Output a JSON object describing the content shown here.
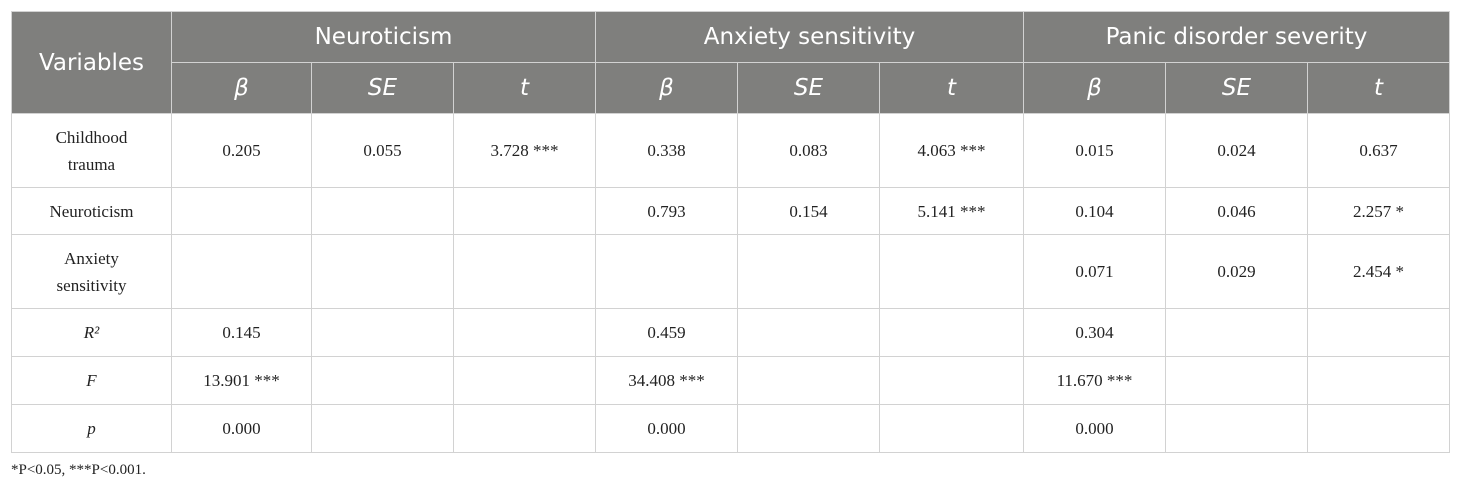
{
  "table": {
    "variables_header": "Variables",
    "groups": [
      "Neuroticism",
      "Anxiety sensitivity",
      "Panic disorder severity"
    ],
    "subheaders": [
      "β",
      "SE",
      "t",
      "β",
      "SE",
      "t",
      "β",
      "SE",
      "t"
    ],
    "rows": [
      {
        "label_lines": [
          "Childhood",
          "trauma"
        ],
        "italic": false,
        "cells": [
          "0.205",
          "0.055",
          "3.728 ***",
          "0.338",
          "0.083",
          "4.063 ***",
          "0.015",
          "0.024",
          "0.637"
        ]
      },
      {
        "label_lines": [
          "Neuroticism"
        ],
        "italic": false,
        "cells": [
          "",
          "",
          "",
          "0.793",
          "0.154",
          "5.141 ***",
          "0.104",
          "0.046",
          "2.257 *"
        ]
      },
      {
        "label_lines": [
          "Anxiety",
          "sensitivity"
        ],
        "italic": false,
        "cells": [
          "",
          "",
          "",
          "",
          "",
          "",
          "0.071",
          "0.029",
          "2.454 *"
        ]
      },
      {
        "label_lines": [
          "R²"
        ],
        "italic": true,
        "cells": [
          "0.145",
          "",
          "",
          "0.459",
          "",
          "",
          "0.304",
          "",
          ""
        ]
      },
      {
        "label_lines": [
          "F"
        ],
        "italic": true,
        "cells": [
          "13.901 ***",
          "",
          "",
          "34.408 ***",
          "",
          "",
          "11.670 ***",
          "",
          ""
        ]
      },
      {
        "label_lines": [
          "p"
        ],
        "italic": true,
        "cells": [
          "0.000",
          "",
          "",
          "0.000",
          "",
          "",
          "0.000",
          "",
          ""
        ]
      }
    ]
  },
  "note": "*P<0.05, ***P<0.001."
}
